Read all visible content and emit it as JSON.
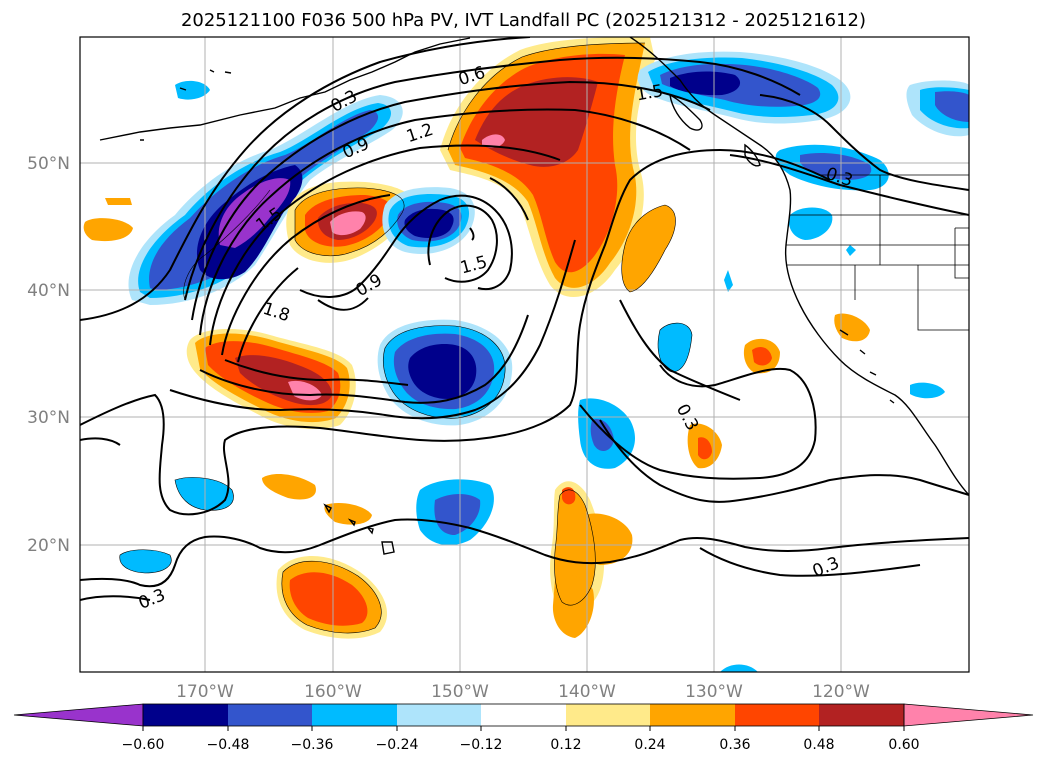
{
  "title": "2025121100 F036 500 hPa PV, IVT Landfall PC (2025121312 - 2025121612)",
  "map": {
    "extent": {
      "lon_min": -180,
      "lon_max": -110,
      "lat_min": 10,
      "lat_max": 60
    },
    "lat_ticks": [
      {
        "value": 20,
        "label": "20°N"
      },
      {
        "value": 30,
        "label": "30°N"
      },
      {
        "value": 40,
        "label": "40°N"
      },
      {
        "value": 50,
        "label": "50°N"
      }
    ],
    "lon_ticks": [
      {
        "value": -170,
        "label": "170°W"
      },
      {
        "value": -160,
        "label": "160°W"
      },
      {
        "value": -150,
        "label": "150°W"
      },
      {
        "value": -140,
        "label": "140°W"
      },
      {
        "value": -130,
        "label": "130°W"
      },
      {
        "value": -120,
        "label": "120°W"
      }
    ],
    "contour_labels": [
      "0.3",
      "0.6",
      "0.9",
      "1.2",
      "1.5",
      "1.8",
      "0.9",
      "1.5",
      "0.3",
      "0.3",
      "0.3",
      "1.5",
      "0.3",
      "1.5",
      "0.3",
      "0.3",
      "1.5"
    ]
  },
  "colorbar": {
    "ticks": [
      "−0.60",
      "−0.48",
      "−0.36",
      "−0.24",
      "−0.12",
      "0.12",
      "0.24",
      "0.36",
      "0.48",
      "0.60"
    ],
    "colors": [
      "#9933cc",
      "#00008b",
      "#3355cc",
      "#00bbff",
      "#aee4fb",
      "#ffffff",
      "#ffea8a",
      "#ffa500",
      "#ff4500",
      "#b22222",
      "#ff82ab"
    ]
  }
}
